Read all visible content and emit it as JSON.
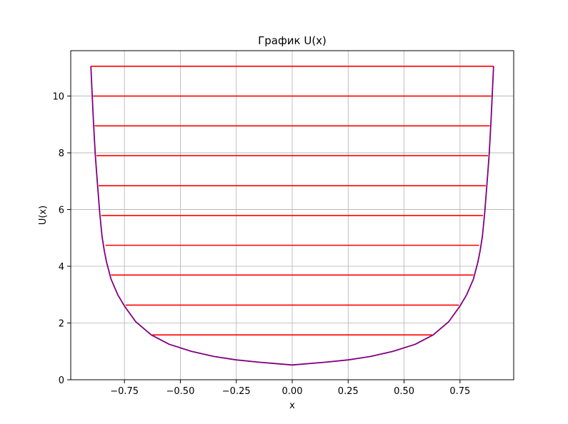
{
  "chart_data": {
    "type": "line",
    "title": "График U(x)",
    "xlabel": "x",
    "ylabel": "U(x)",
    "xlim": [
      -0.99,
      0.99
    ],
    "ylim": [
      0,
      11.6
    ],
    "grid": true,
    "xticks": [
      -0.75,
      -0.5,
      -0.25,
      0.0,
      0.25,
      0.5,
      0.75
    ],
    "xtick_labels": [
      "−0.75",
      "−0.50",
      "−0.25",
      "0.00",
      "0.25",
      "0.50",
      "0.75"
    ],
    "yticks": [
      0,
      2,
      4,
      6,
      8,
      10
    ],
    "ytick_labels": [
      "0",
      "2",
      "4",
      "6",
      "8",
      "10"
    ],
    "curve": {
      "color": "#800080",
      "x": [
        -0.9,
        -0.895,
        -0.89,
        -0.885,
        -0.88,
        -0.87,
        -0.86,
        -0.85,
        -0.84,
        -0.83,
        -0.81,
        -0.78,
        -0.75,
        -0.7,
        -0.63,
        -0.55,
        -0.45,
        -0.35,
        -0.25,
        -0.15,
        0.0,
        0.15,
        0.25,
        0.35,
        0.45,
        0.55,
        0.63,
        0.7,
        0.75,
        0.78,
        0.81,
        0.83,
        0.84,
        0.85,
        0.86,
        0.87,
        0.88,
        0.885,
        0.89,
        0.895,
        0.9
      ],
      "y": [
        11.05,
        10.2,
        9.35,
        8.6,
        7.9,
        6.85,
        5.85,
        5.05,
        4.55,
        4.15,
        3.55,
        3.0,
        2.6,
        2.05,
        1.58,
        1.25,
        1.0,
        0.82,
        0.7,
        0.62,
        0.52,
        0.62,
        0.7,
        0.82,
        1.0,
        1.25,
        1.58,
        2.05,
        2.6,
        3.0,
        3.55,
        4.15,
        4.55,
        5.05,
        5.85,
        6.85,
        7.9,
        8.6,
        9.35,
        10.2,
        11.05
      ]
    },
    "levels": {
      "color": "#ff0000",
      "values": [
        1.58,
        2.63,
        3.69,
        4.74,
        5.79,
        6.84,
        7.9,
        8.95,
        10.0,
        11.05
      ],
      "x_left": [
        -0.625,
        -0.745,
        -0.81,
        -0.835,
        -0.853,
        -0.865,
        -0.875,
        -0.883,
        -0.89,
        -0.9
      ],
      "x_right": [
        0.625,
        0.745,
        0.81,
        0.835,
        0.853,
        0.865,
        0.875,
        0.883,
        0.89,
        0.9
      ]
    }
  }
}
